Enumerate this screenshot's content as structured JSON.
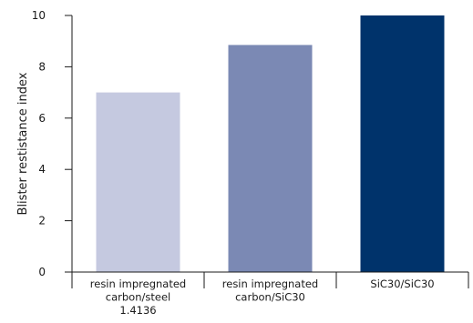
{
  "chart_data": {
    "type": "bar",
    "categories": [
      [
        "resin impregnated",
        "carbon/steel",
        "1.4136"
      ],
      [
        "resin impregnated",
        "carbon/SiC30"
      ],
      [
        "SiC30/SiC30"
      ]
    ],
    "values": [
      7.0,
      8.85,
      10.0
    ],
    "colors": [
      "#c5c9e0",
      "#7b89b4",
      "#00336b"
    ],
    "title": "",
    "xlabel": "",
    "ylabel": "Blister restistance index",
    "ylim": [
      0,
      10
    ],
    "yticks": [
      0,
      2,
      4,
      6,
      8,
      10
    ],
    "grid": false,
    "legend": "none"
  }
}
